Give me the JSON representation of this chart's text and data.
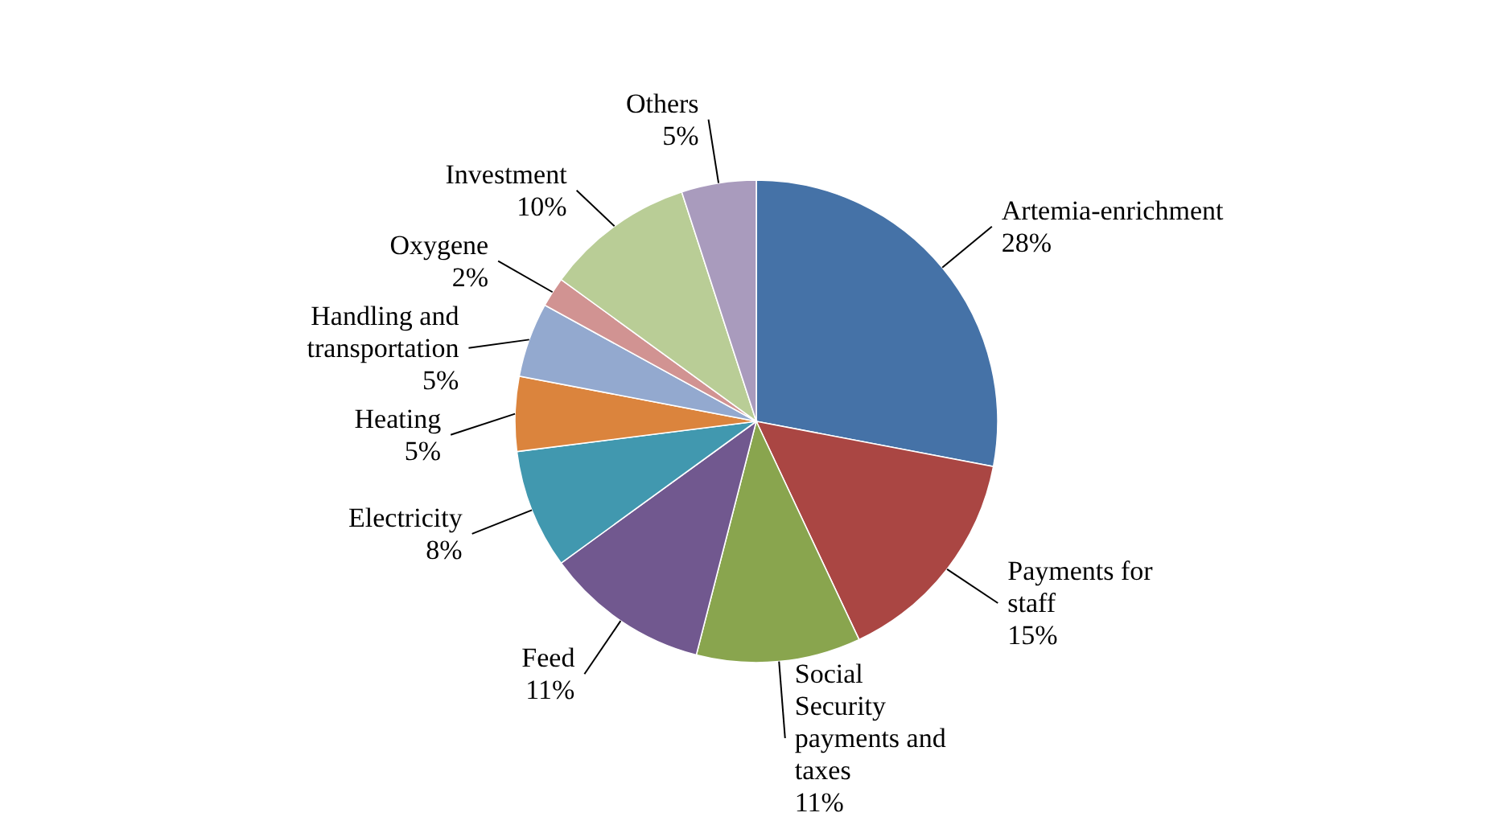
{
  "chart_data": {
    "type": "pie",
    "categories": [
      "Artemia-enrichment",
      "Payments for staff",
      "Social Security payments and taxes",
      "Feed",
      "Electricity",
      "Heating",
      "Handling and transportation",
      "Oxygene",
      "Investment",
      "Others"
    ],
    "values": [
      28,
      15,
      11,
      11,
      8,
      5,
      5,
      2,
      10,
      5
    ],
    "value_labels": [
      "28%",
      "15%",
      "11%",
      "11%",
      "8%",
      "5%",
      "5%",
      "2%",
      "10%",
      "5%"
    ],
    "colors": [
      "#4572a7",
      "#aa4643",
      "#89a54e",
      "#71588f",
      "#4198af",
      "#db843d",
      "#93a9cf",
      "#d19392",
      "#b9cd96",
      "#a99bbd"
    ]
  }
}
